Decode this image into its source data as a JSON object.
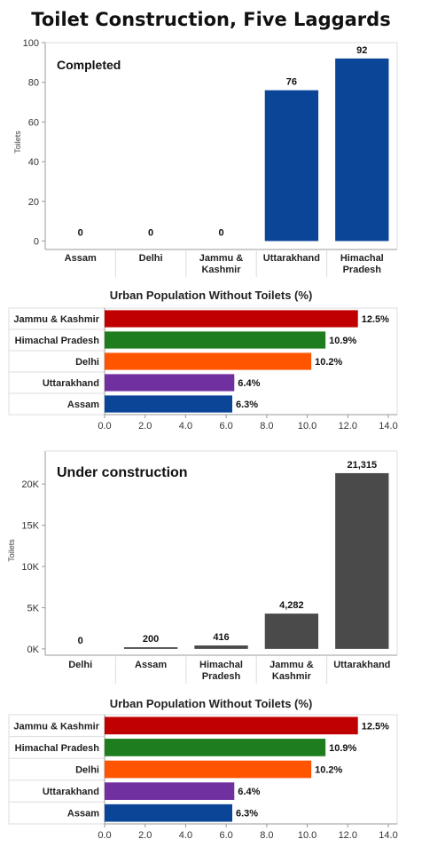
{
  "title": "Toilet Construction, Five Laggards",
  "colors": {
    "completed_bar": "#0a4597",
    "under_construction_bar": "#4a4a4a",
    "axis": "#999999",
    "grid": "#dddddd"
  },
  "chart_data": [
    {
      "type": "bar",
      "orientation": "vertical",
      "panel_label": "Completed",
      "ylabel": "Toilets",
      "categories": [
        "Assam",
        "Delhi",
        "Jammu & Kashmir",
        "Uttarakhand",
        "Himachal Pradesh"
      ],
      "category_lines": [
        [
          "Assam"
        ],
        [
          "Delhi"
        ],
        [
          "Jammu &",
          "Kashmir"
        ],
        [
          "Uttarakhand"
        ],
        [
          "Himachal",
          "Pradesh"
        ]
      ],
      "values": [
        0,
        0,
        0,
        76,
        92
      ],
      "value_labels": [
        "0",
        "0",
        "0",
        "76",
        "92"
      ],
      "ylim": [
        0,
        100
      ],
      "yticks": [
        0,
        20,
        40,
        60,
        80,
        100
      ],
      "ytick_labels": [
        "0",
        "20",
        "40",
        "60",
        "80",
        "100"
      ],
      "color": "#0a4597"
    },
    {
      "type": "bar",
      "orientation": "horizontal",
      "title": "Urban Population Without Toilets (%)",
      "categories": [
        "Jammu & Kashmir",
        "Himachal Pradesh",
        "Delhi",
        "Uttarakhand",
        "Assam"
      ],
      "values": [
        12.5,
        10.9,
        10.2,
        6.4,
        6.3
      ],
      "value_labels": [
        "12.5%",
        "10.9%",
        "10.2%",
        "6.4%",
        "6.3%"
      ],
      "colors": [
        "#c00000",
        "#1e7d1e",
        "#ff5500",
        "#7030a0",
        "#0a4597"
      ],
      "xlim": [
        0,
        14
      ],
      "xticks": [
        0,
        2,
        4,
        6,
        8,
        10,
        12,
        14
      ],
      "xtick_labels": [
        "0.0",
        "2.0",
        "4.0",
        "6.0",
        "8.0",
        "10.0",
        "12.0",
        "14.0"
      ]
    },
    {
      "type": "bar",
      "orientation": "vertical",
      "panel_label": "Under construction",
      "ylabel": "Toilets",
      "categories": [
        "Delhi",
        "Assam",
        "Himachal Pradesh",
        "Jammu & Kashmir",
        "Uttarakhand"
      ],
      "category_lines": [
        [
          "Delhi"
        ],
        [
          "Assam"
        ],
        [
          "Himachal",
          "Pradesh"
        ],
        [
          "Jammu &",
          "Kashmir"
        ],
        [
          "Uttarakhand"
        ]
      ],
      "values": [
        0,
        200,
        416,
        4282,
        21315
      ],
      "value_labels": [
        "0",
        "200",
        "416",
        "4,282",
        "21,315"
      ],
      "ylim": [
        -800,
        24000
      ],
      "yticks": [
        0,
        5000,
        10000,
        15000,
        20000
      ],
      "ytick_labels": [
        "0K",
        "5K",
        "10K",
        "15K",
        "20K"
      ],
      "color": "#4a4a4a"
    },
    {
      "type": "bar",
      "orientation": "horizontal",
      "title": "Urban Population Without Toilets (%)",
      "categories": [
        "Jammu & Kashmir",
        "Himachal Pradesh",
        "Delhi",
        "Uttarakhand",
        "Assam"
      ],
      "values": [
        12.5,
        10.9,
        10.2,
        6.4,
        6.3
      ],
      "value_labels": [
        "12.5%",
        "10.9%",
        "10.2%",
        "6.4%",
        "6.3%"
      ],
      "colors": [
        "#c00000",
        "#1e7d1e",
        "#ff5500",
        "#7030a0",
        "#0a4597"
      ],
      "xlim": [
        0,
        14
      ],
      "xticks": [
        0,
        2,
        4,
        6,
        8,
        10,
        12,
        14
      ],
      "xtick_labels": [
        "0.0",
        "2.0",
        "4.0",
        "6.0",
        "8.0",
        "10.0",
        "12.0",
        "14.0"
      ]
    }
  ]
}
